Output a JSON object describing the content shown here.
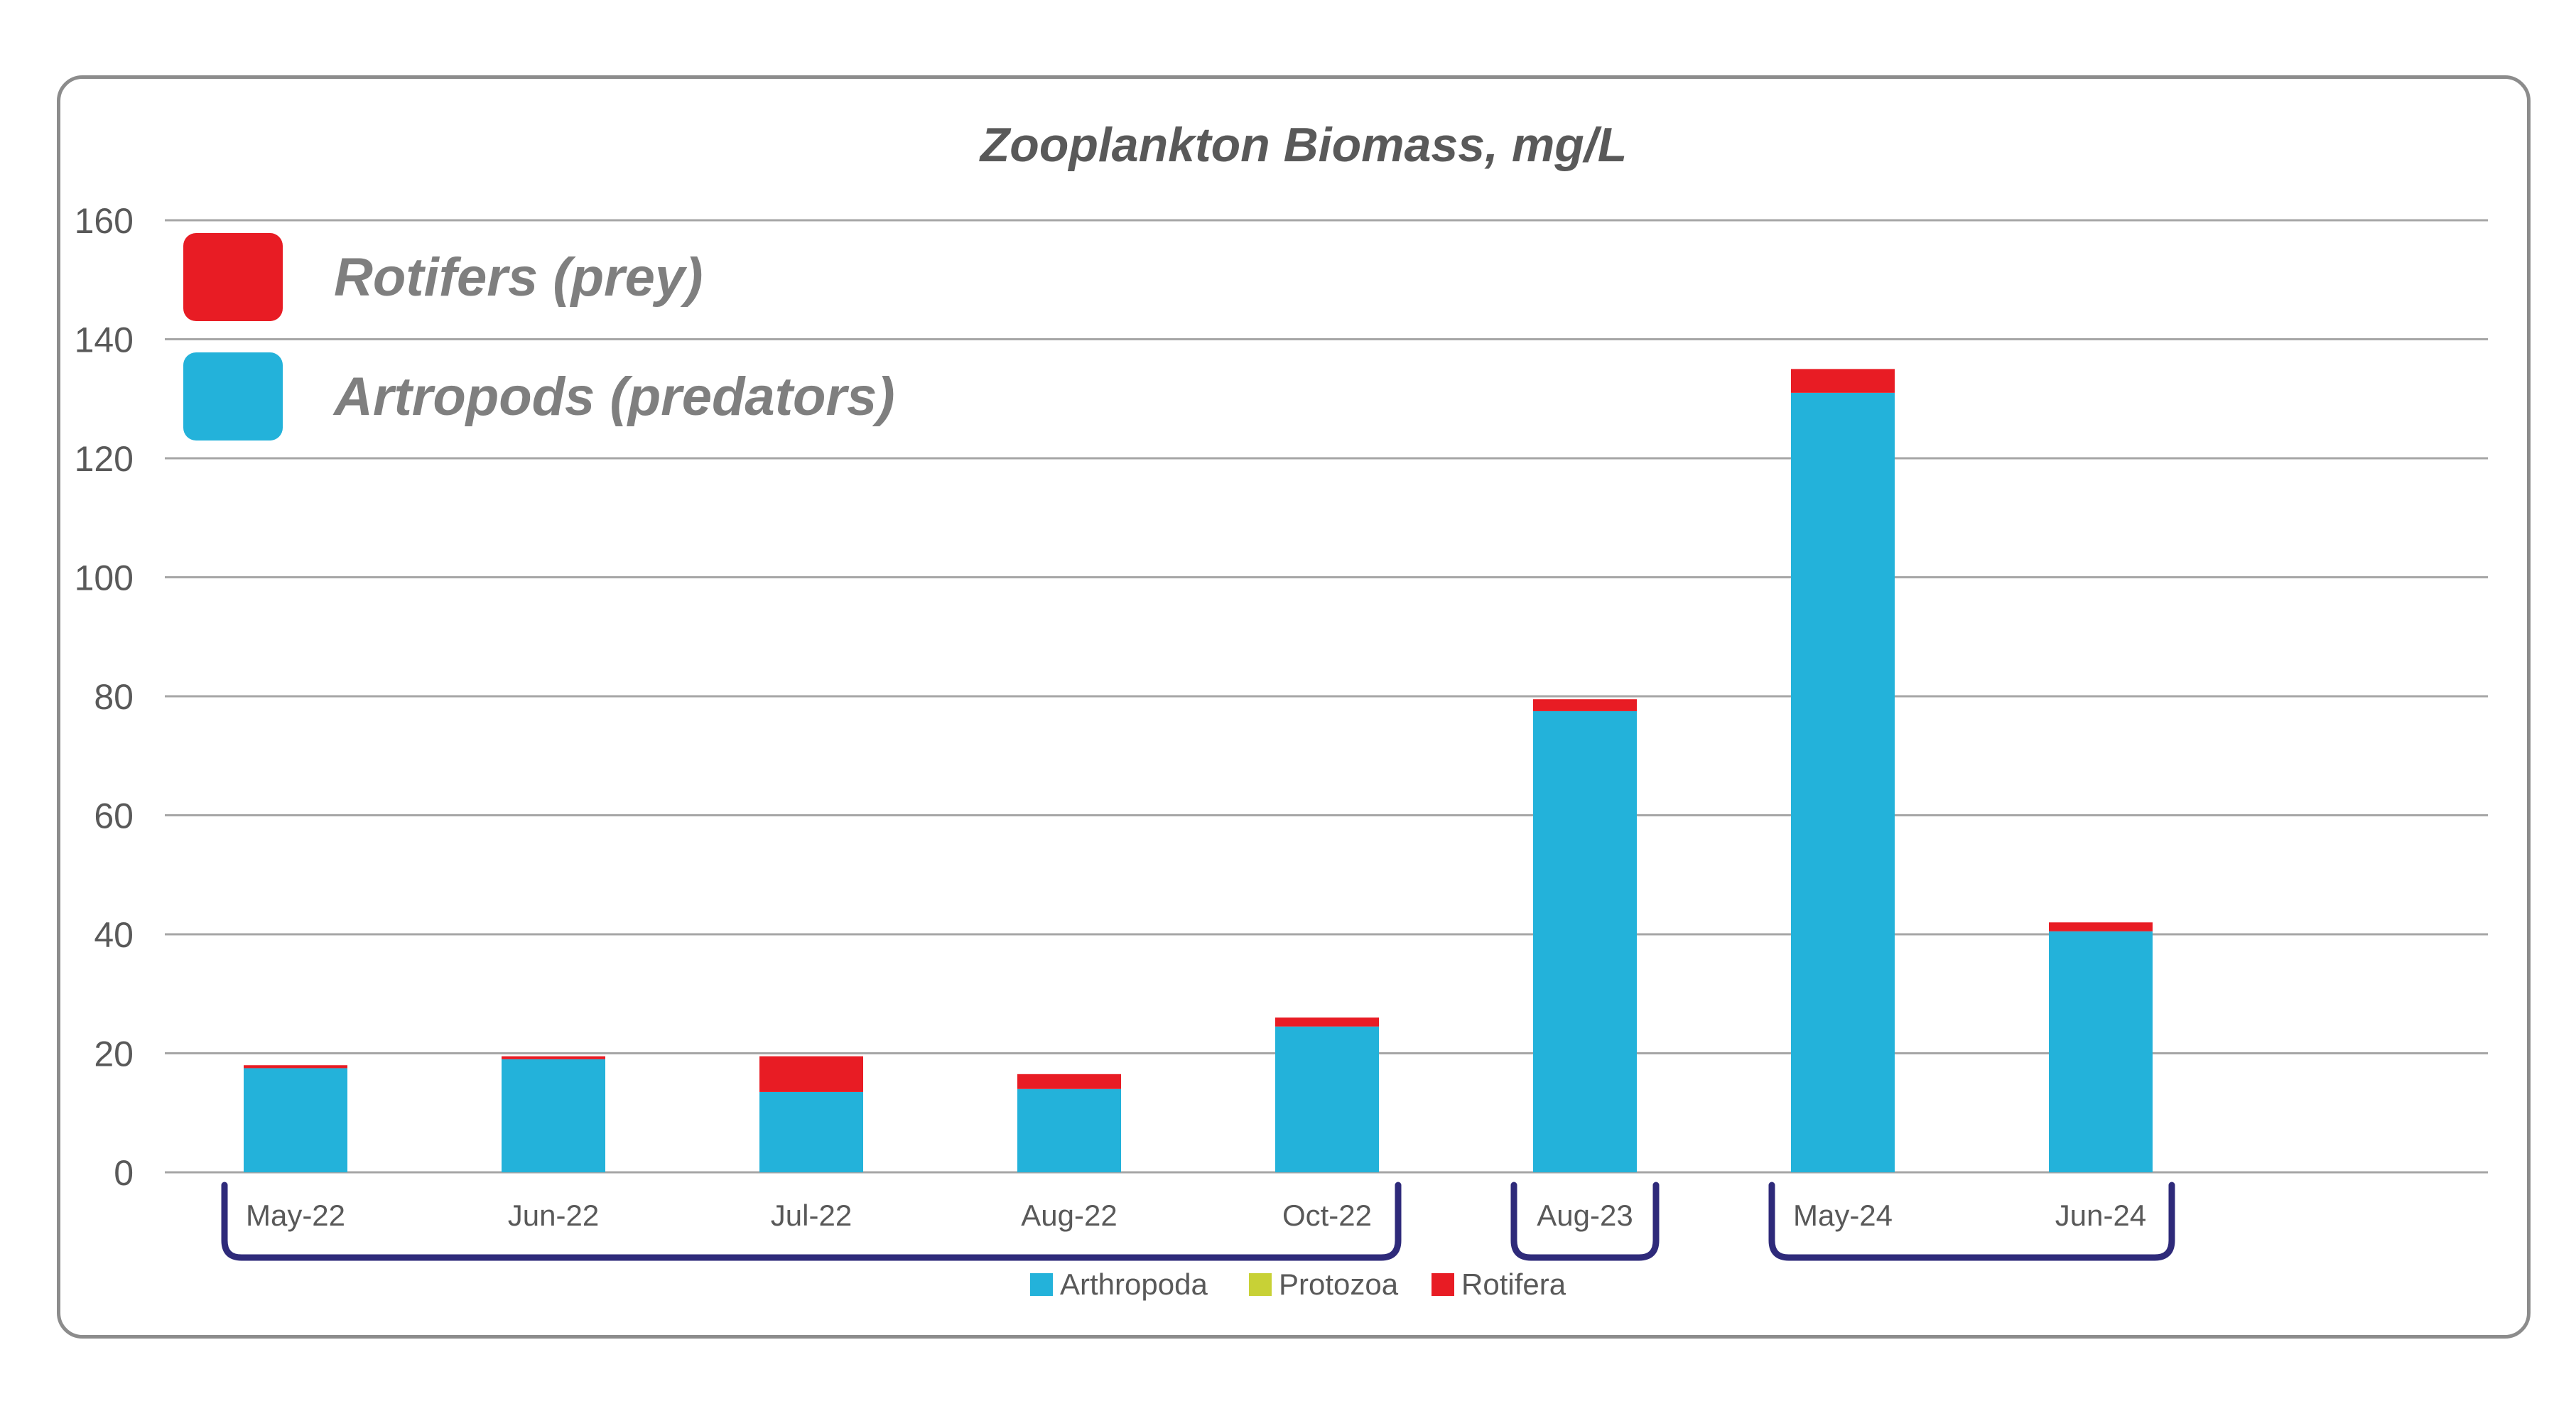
{
  "chart_data": {
    "type": "bar",
    "stacked": true,
    "title": "Zooplankton Biomass, mg/L",
    "xlabel": "",
    "ylabel": "",
    "ylim": [
      0,
      160
    ],
    "yticks": [
      0,
      20,
      40,
      60,
      80,
      100,
      120,
      140,
      160
    ],
    "grid": true,
    "categories": [
      "May-22",
      "Jun-22",
      "Jul-22",
      "Aug-22",
      "Oct-22",
      "Aug-23",
      "May-24",
      "Jun-24"
    ],
    "category_groups": [
      {
        "categories": [
          "May-22",
          "Jun-22",
          "Jul-22",
          "Aug-22",
          "Oct-22"
        ]
      },
      {
        "categories": [
          "Aug-23"
        ]
      },
      {
        "categories": [
          "May-24",
          "Jun-24"
        ]
      }
    ],
    "series": [
      {
        "name": "Arthropoda",
        "color": "#23b2da",
        "values": [
          17.5,
          19,
          13.5,
          14,
          24.5,
          77.5,
          131,
          40.5
        ]
      },
      {
        "name": "Protozoa",
        "color": "#c8d136",
        "values": [
          0,
          0,
          0,
          0,
          0,
          0,
          0,
          0
        ]
      },
      {
        "name": "Rotifera",
        "color": "#e81c24",
        "values": [
          0.5,
          0.5,
          6,
          2.5,
          1.5,
          2,
          4,
          1.5
        ]
      }
    ],
    "legend": {
      "placement": "bottom",
      "items": [
        "Arthropoda",
        "Protozoa",
        "Rotifera"
      ]
    },
    "annotations": [
      {
        "text": "Rotifers (prey)",
        "color": "#e81c24"
      },
      {
        "text": "Artropods (predators)",
        "color": "#23b2da"
      }
    ]
  },
  "colors": {
    "grid": "#a6a6a6",
    "text": "#595959",
    "annotation_text": "#7f7f7f",
    "bracket": "#2e2a7a",
    "frame": "#8c8c8c"
  }
}
